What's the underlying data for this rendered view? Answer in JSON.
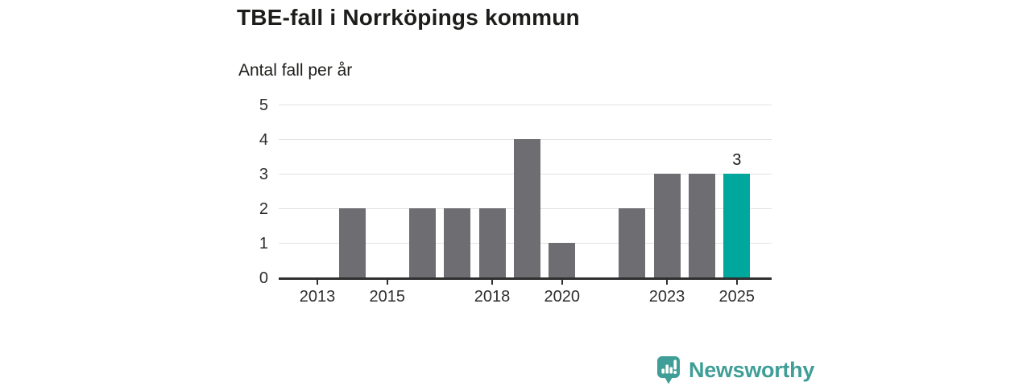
{
  "header": {
    "title": "TBE-fall i Norrköpings kommun",
    "subtitle": "Antal fall per år"
  },
  "chart_data": {
    "type": "bar",
    "title": "TBE-fall i Norrköpings kommun",
    "subtitle": "Antal fall per år",
    "categories": [
      2013,
      2014,
      2015,
      2016,
      2017,
      2018,
      2019,
      2020,
      2021,
      2022,
      2023,
      2024,
      2025
    ],
    "values": [
      0,
      2,
      0,
      2,
      2,
      2,
      4,
      1,
      0,
      2,
      3,
      3,
      3
    ],
    "x_tick_labels": [
      "2013",
      "2015",
      "2018",
      "2020",
      "2023",
      "2025"
    ],
    "y_ticks": [
      0,
      1,
      2,
      3,
      4,
      5
    ],
    "ylim": [
      0,
      5
    ],
    "grid": true,
    "legend_position": "none",
    "bar_color": "#6d6d72",
    "highlight": {
      "category": 2025,
      "color": "#00a79c",
      "data_label": "3"
    }
  },
  "branding": {
    "name": "Newsworthy",
    "color": "#3f9e97",
    "icon": "newsworthy-speech-bubble-bar-chart-icon"
  }
}
